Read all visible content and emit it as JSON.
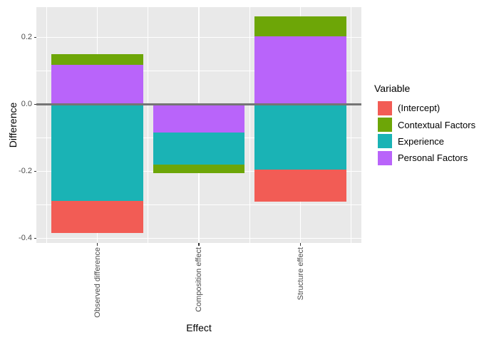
{
  "chart_data": {
    "type": "bar",
    "stacked": true,
    "title": "",
    "xlabel": "Effect",
    "ylabel": "Difference",
    "categories": [
      "Observed difference",
      "Composition effect",
      "Structure effect"
    ],
    "series": [
      {
        "name": "(Intercept)",
        "color": "#F25C55",
        "values": [
          -0.096,
          0.0,
          -0.096
        ]
      },
      {
        "name": "Contextual Factors",
        "color": "#6DA607",
        "values": [
          0.031,
          -0.026,
          0.06
        ]
      },
      {
        "name": "Experience",
        "color": "#1AB3B5",
        "values": [
          -0.288,
          -0.094,
          -0.194
        ]
      },
      {
        "name": "Personal Factors",
        "color": "#B964FA",
        "values": [
          0.118,
          -0.085,
          0.203
        ]
      }
    ],
    "stack_order_note": "positive and negative values stack outward from zero in reverse series order",
    "ylim": [
      -0.414,
      0.2904
    ],
    "yticks_major": [
      0.2,
      0.0,
      -0.2,
      -0.4
    ],
    "ytick_labels": [
      "0.2",
      "0.0",
      "-0.2",
      "-0.4"
    ],
    "yticks_minor": [
      0.1,
      -0.1,
      -0.3
    ],
    "zero_line": 0,
    "legend_title": "Variable",
    "legend_position": "right",
    "grid": true,
    "panel_background": "#E9E9E9",
    "gridline_color": "#FFFFFF",
    "zero_line_color": "#757575",
    "tick_color": "#333333",
    "axis_text_color": "#4D4D4D"
  }
}
